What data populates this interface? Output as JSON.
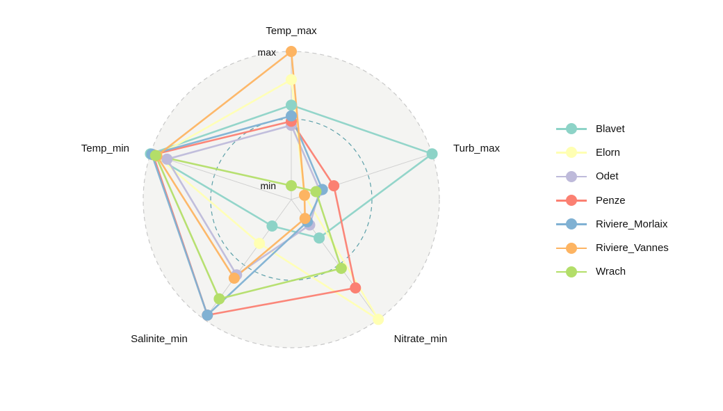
{
  "chart_data": {
    "type": "radar",
    "axes": [
      "Temp_max",
      "Turb_max",
      "Nitrate_min",
      "Salinite_min",
      "Temp_min"
    ],
    "ring_labels": {
      "outer": "max",
      "inner": "min"
    },
    "range": [
      0,
      1
    ],
    "grid": "outer and middle rings dashed",
    "legend_position": "right",
    "series": [
      {
        "name": "Blavet",
        "color": "#8dd3c7",
        "values": [
          0.6,
          1.0,
          0.25,
          0.14,
          1.0
        ]
      },
      {
        "name": "Elorn",
        "color": "#ffffb3",
        "values": [
          0.79,
          0.0,
          1.0,
          0.3,
          0.95
        ]
      },
      {
        "name": "Odet",
        "color": "#bebada",
        "values": [
          0.45,
          0.12,
          0.13,
          0.59,
          0.87
        ]
      },
      {
        "name": "Penze",
        "color": "#fb8072",
        "values": [
          0.48,
          0.23,
          0.71,
          0.96,
          0.98
        ]
      },
      {
        "name": "Riviere_Morlaix",
        "color": "#80b1d3",
        "values": [
          0.52,
          0.14,
          0.1,
          0.96,
          0.99
        ]
      },
      {
        "name": "Riviere_Vannes",
        "color": "#fdb462",
        "values": [
          1.0,
          0.0,
          0.07,
          0.62,
          0.95
        ]
      },
      {
        "name": "Wrach",
        "color": "#b3de69",
        "values": [
          0.0,
          0.09,
          0.53,
          0.81,
          0.96
        ]
      }
    ]
  }
}
